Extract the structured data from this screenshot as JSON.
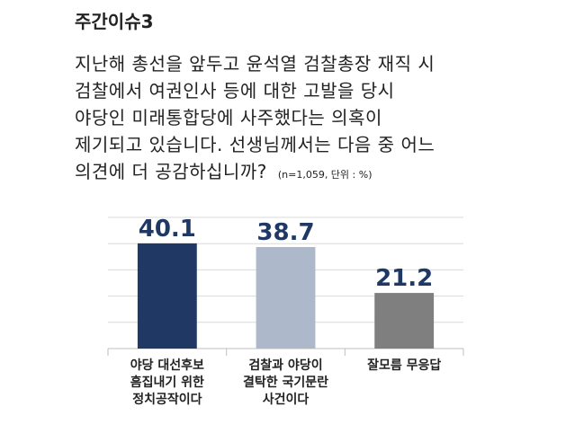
{
  "chart_data": {
    "type": "bar",
    "title": "주간이슈3",
    "question": [
      "지난해 총선을 앞두고 윤석열 검찰총장 재직 시",
      "검찰에서 여권인사 등에 대한 고발을 당시",
      "야당인 미래통합당에 사주했다는 의혹이",
      "제기되고 있습니다. 선생님께서는 다음 중 어느",
      "의견에 더 공감하십니까?"
    ],
    "note": "(n=1,059, 단위 : %)",
    "categories": [
      "야당 대선후보\n흠집내기 위한\n정치공작이다",
      "검찰과 야당이\n결탁한 국기문란\n사건이다",
      "잘모름 무응답"
    ],
    "values": [
      40.1,
      38.7,
      21.2
    ],
    "colors": [
      "#203864",
      "#adb9ca",
      "#7f7f7f"
    ],
    "label_color": "#1f3864",
    "ylim": [
      0,
      50
    ],
    "yticks": [
      0,
      10,
      20,
      30,
      40,
      50
    ],
    "grid": true
  }
}
